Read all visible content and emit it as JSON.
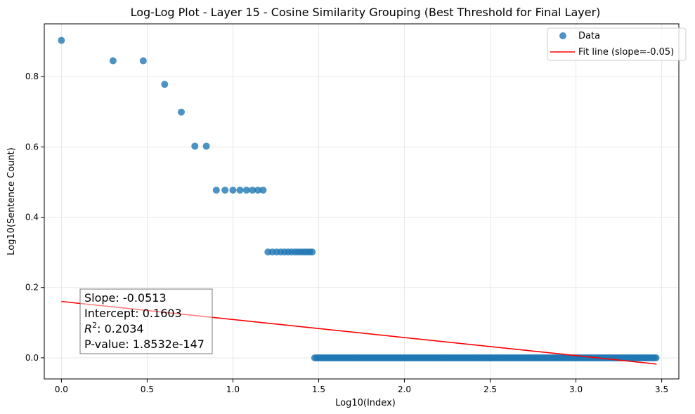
{
  "chart_data": {
    "type": "scatter",
    "title": "Log-Log Plot - Layer 15 - Cosine Similarity Grouping (Best Threshold for Final Layer)",
    "xlabel": "Log10(Index)",
    "ylabel": "Log10(Sentence Count)",
    "xlim": [
      -0.1,
      3.6
    ],
    "ylim": [
      -0.06,
      0.95
    ],
    "x_ticks": [
      0.0,
      0.5,
      1.0,
      1.5,
      2.0,
      2.5,
      3.0,
      3.5
    ],
    "x_tick_labels": [
      "0.0",
      "0.5",
      "1.0",
      "1.5",
      "2.0",
      "2.5",
      "3.0",
      "3.5"
    ],
    "y_ticks": [
      0.0,
      0.2,
      0.4,
      0.6,
      0.8
    ],
    "y_tick_labels": [
      "0.0",
      "0.2",
      "0.4",
      "0.6",
      "0.8"
    ],
    "grid": true,
    "legend_position": "top-right",
    "series": [
      {
        "name": "Data",
        "kind": "scatter",
        "color": "#1f77b4",
        "points": [
          [
            0.0,
            0.903
          ],
          [
            0.301,
            0.845
          ],
          [
            0.477,
            0.845
          ],
          [
            0.602,
            0.778
          ],
          [
            0.699,
            0.699
          ],
          [
            0.778,
            0.602
          ],
          [
            0.845,
            0.602
          ],
          [
            0.903,
            0.477
          ],
          [
            0.954,
            0.477
          ],
          [
            1.0,
            0.477
          ],
          [
            1.041,
            0.477
          ],
          [
            1.079,
            0.477
          ],
          [
            1.114,
            0.477
          ],
          [
            1.146,
            0.477
          ],
          [
            1.176,
            0.477
          ],
          [
            1.204,
            0.301
          ],
          [
            1.23,
            0.301
          ],
          [
            1.255,
            0.301
          ],
          [
            1.279,
            0.301
          ],
          [
            1.301,
            0.301
          ],
          [
            1.322,
            0.301
          ],
          [
            1.342,
            0.301
          ],
          [
            1.362,
            0.301
          ],
          [
            1.38,
            0.301
          ],
          [
            1.398,
            0.301
          ],
          [
            1.415,
            0.301
          ],
          [
            1.431,
            0.301
          ],
          [
            1.447,
            0.301
          ],
          [
            1.462,
            0.301
          ]
        ],
        "dense_range": {
          "y": 0.0,
          "x_start": 1.477,
          "x_end": 3.47,
          "step": 0.01
        }
      },
      {
        "name": "Fit line (slope=-0.05)",
        "kind": "line",
        "color": "#ff0000",
        "slope": -0.0513,
        "intercept": 0.1603,
        "x_range": [
          0.0,
          3.47
        ]
      }
    ],
    "stats_box": [
      "Slope: -0.0513",
      "Intercept: 0.1603",
      "R2: 0.2034",
      "P-value: 1.8532e-147"
    ],
    "stats_r2_label": "R",
    "stats_r2_sup": "2",
    "stats_r2_value": ": 0.2034"
  }
}
